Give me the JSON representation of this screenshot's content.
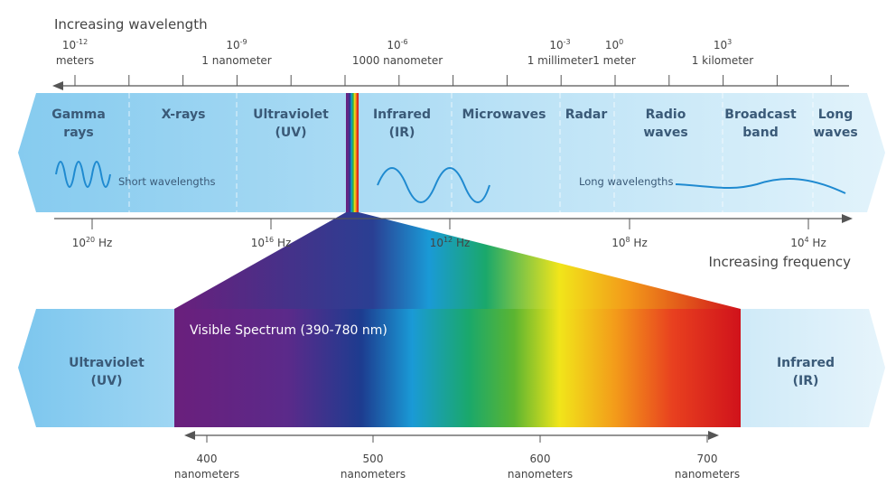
{
  "wavelength_axis": {
    "title": "Increasing wavelength",
    "ticks": [
      {
        "exp": "10",
        "sup": "-12",
        "label": "meters"
      },
      {
        "exp": "10",
        "sup": "-9",
        "label": "1 nanometer"
      },
      {
        "exp": "10",
        "sup": "-6",
        "label": "1000 nanometer"
      },
      {
        "exp": "10",
        "sup": "-3",
        "label": "1 millimeter"
      },
      {
        "exp": "10",
        "sup": "0",
        "label": "1 meter"
      },
      {
        "exp": "10",
        "sup": "3",
        "label": "1 kilometer"
      }
    ]
  },
  "bands": [
    {
      "line1": "Gamma",
      "line2": "rays"
    },
    {
      "line1": "X-rays",
      "line2": ""
    },
    {
      "line1": "Ultraviolet",
      "line2": "(UV)"
    },
    {
      "line1": "Infrared",
      "line2": "(IR)"
    },
    {
      "line1": "Microwaves",
      "line2": ""
    },
    {
      "line1": "Radar",
      "line2": ""
    },
    {
      "line1": "Radio",
      "line2": "waves"
    },
    {
      "line1": "Broadcast",
      "line2": "band"
    },
    {
      "line1": "Long",
      "line2": "waves"
    }
  ],
  "wave_labels": {
    "short": "Short wavelengths",
    "long": "Long wavelengths"
  },
  "frequency_axis": {
    "title": "Increasing frequency",
    "ticks": [
      {
        "base": "10",
        "sup": "20",
        "unit": " Hz"
      },
      {
        "base": "10",
        "sup": "16",
        "unit": " Hz"
      },
      {
        "base": "10",
        "sup": "12",
        "unit": " Hz"
      },
      {
        "base": "10",
        "sup": "8",
        "unit": " Hz"
      },
      {
        "base": "10",
        "sup": "4",
        "unit": " Hz"
      }
    ]
  },
  "visible": {
    "title": "Visible Spectrum (390-780 nm)",
    "left": {
      "line1": "Ultraviolet",
      "line2": "(UV)"
    },
    "right": {
      "line1": "Infrared",
      "line2": "(IR)"
    },
    "ticks": [
      {
        "value": "400",
        "unit": "nanometers"
      },
      {
        "value": "500",
        "unit": "nanometers"
      },
      {
        "value": "600",
        "unit": "nanometers"
      },
      {
        "value": "700",
        "unit": "nanometers"
      }
    ]
  }
}
